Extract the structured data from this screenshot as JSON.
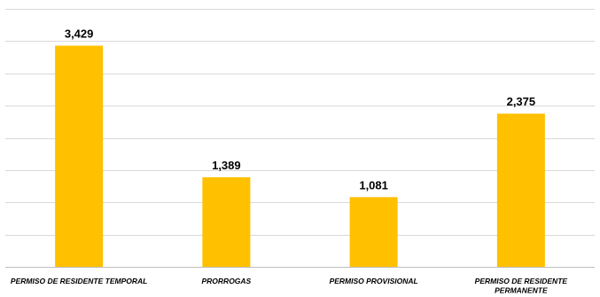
{
  "chart_data": {
    "type": "bar",
    "title": "",
    "xlabel": "",
    "ylabel": "",
    "categories": [
      [
        "PERMISO DE RESIDENTE TEMPORAL"
      ],
      [
        "PRORROGAS"
      ],
      [
        "PERMISO PROVISIONAL"
      ],
      [
        "PERMISO DE RESIDENTE",
        "PERMANENTE"
      ]
    ],
    "values": [
      3429,
      1389,
      1081,
      2375
    ],
    "data_labels": [
      "3,429",
      "1,389",
      "1,081",
      "2,375"
    ],
    "ylim": [
      0,
      4000
    ],
    "grid": true,
    "legend": "none",
    "bar_color": "#FFC000",
    "grid_color": "#d9d9d9"
  }
}
